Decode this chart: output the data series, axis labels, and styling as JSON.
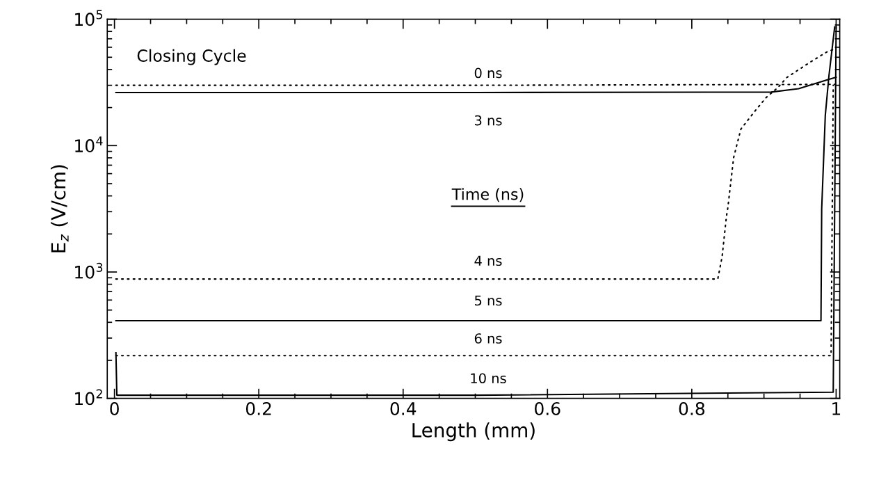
{
  "chart_data": {
    "type": "line",
    "xlabel": "Length (mm)",
    "ylabel": "E$_{z}$ (V/cm)",
    "log": "y",
    "xlim": [
      -0.01,
      1.005
    ],
    "xticks": [
      0,
      0.2,
      0.4,
      0.6,
      0.8,
      1
    ],
    "ylim": [
      100,
      100000
    ],
    "yticks": [
      {
        "value": 100,
        "label": "10$^{2}$"
      },
      {
        "value": 1000,
        "label": "10$^{3}$"
      },
      {
        "value": 10000,
        "label": "10$^{4}$"
      },
      {
        "value": 100000,
        "label": "10$^{5}$"
      }
    ],
    "marker": "none",
    "series": [
      {
        "color": "#000000",
        "line_style": "dotted",
        "x": [
          0.002,
          0.5,
          0.999
        ],
        "values": [
          30000,
          30000,
          30500
        ]
      },
      {
        "color": "#000000",
        "line_style": "solid",
        "x": [
          0.002,
          0.5,
          0.91,
          0.948,
          0.987,
          1.0
        ],
        "values": [
          26300,
          26300,
          26500,
          28200,
          33000,
          34700
        ]
      },
      {
        "color": "#000000",
        "line_style": "dotted",
        "x": [
          0.002,
          0.5,
          0.836,
          0.842,
          0.848,
          0.85,
          0.858,
          0.868,
          0.887,
          0.903,
          0.919,
          0.932,
          0.964,
          0.987,
          0.996
        ],
        "values": [
          880,
          880,
          880,
          1320,
          2750,
          3240,
          8050,
          13500,
          18600,
          24000,
          28700,
          34700,
          45700,
          55000,
          57500
        ]
      },
      {
        "color": "#000000",
        "line_style": "solid",
        "x": [
          0.002,
          0.5,
          0.979,
          0.98,
          0.985,
          0.99,
          0.998
        ],
        "values": [
          412,
          412,
          412,
          3160,
          17400,
          35500,
          87000
        ]
      },
      {
        "color": "#000000",
        "line_style": "dotted",
        "x": [
          0.002,
          0.5,
          0.993,
          0.996
        ],
        "values": [
          218,
          218,
          218,
          30000
        ]
      },
      {
        "color": "#000000",
        "line_style": "solid",
        "x": [
          0.002,
          0.0033,
          0.5,
          0.996,
          1.0
        ],
        "values": [
          230,
          106,
          106,
          112,
          87000
        ]
      }
    ],
    "annotations": [
      "Closing Cycle",
      "Time (ns)",
      "0 ns",
      "3 ns",
      "4 ns",
      "5 ns",
      "6 ns",
      "10 ns"
    ]
  }
}
